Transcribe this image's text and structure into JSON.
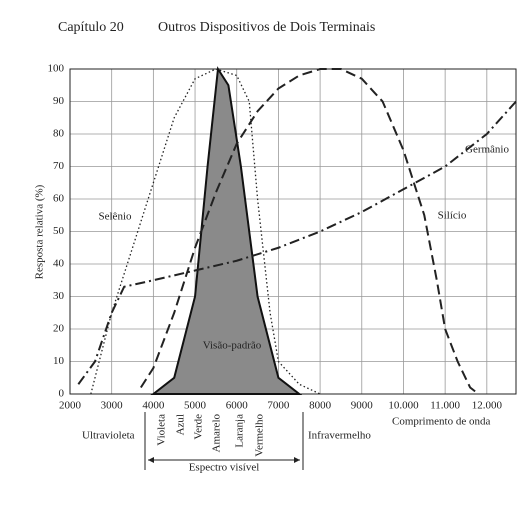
{
  "header": {
    "chapter": "Capítulo 20",
    "title": "Outros Dispositivos de Dois Terminais"
  },
  "chart_data": {
    "type": "line",
    "ylabel": "Resposta relativa (%)",
    "xlim": [
      2000,
      12700
    ],
    "ylim": [
      0,
      100
    ],
    "xticks": [
      2000,
      3000,
      4000,
      5000,
      6000,
      7000,
      8000,
      9000,
      {
        "value": 10000,
        "label": "10.000"
      },
      {
        "value": 11000,
        "label": "11.000"
      },
      {
        "value": 12000,
        "label": "12.000"
      }
    ],
    "yticks": [
      0,
      10,
      20,
      30,
      40,
      50,
      60,
      70,
      80,
      90,
      100
    ],
    "grid": true,
    "series": [
      {
        "name": "Selênio",
        "color": "#222",
        "style": "dotted",
        "x": [
          2500,
          2700,
          3000,
          3500,
          4000,
          4500,
          5000,
          5500,
          6000,
          6300,
          6500,
          6800,
          7000,
          7500,
          8000
        ],
        "values": [
          0,
          10,
          25,
          45,
          65,
          85,
          97,
          100,
          98,
          90,
          60,
          25,
          10,
          3,
          0
        ]
      },
      {
        "name": "Visão-padrão",
        "color": "#8a8a8a",
        "style": "filled",
        "x": [
          4000,
          4500,
          5000,
          5300,
          5550,
          5800,
          6100,
          6500,
          7000,
          7500
        ],
        "values": [
          0,
          5,
          30,
          70,
          100,
          95,
          70,
          30,
          5,
          0
        ]
      },
      {
        "name": "Silício",
        "color": "#222",
        "style": "dashed",
        "x": [
          3700,
          4000,
          4500,
          5000,
          5500,
          6000,
          6500,
          7000,
          7500,
          8000,
          8500,
          9000,
          9500,
          10000,
          10500,
          10800,
          11000,
          11300,
          11600,
          11800
        ],
        "values": [
          2,
          8,
          25,
          45,
          62,
          77,
          87,
          94,
          98,
          100,
          100,
          97,
          90,
          75,
          55,
          35,
          20,
          10,
          2,
          0
        ]
      },
      {
        "name": "Germânio",
        "color": "#222",
        "style": "dashdot",
        "x": [
          2200,
          2600,
          3000,
          3300,
          4000,
          5000,
          6000,
          7000,
          8000,
          9000,
          10000,
          11000,
          12000,
          12700
        ],
        "values": [
          3,
          10,
          25,
          33,
          35,
          38,
          41,
          45,
          50,
          56,
          63,
          70,
          80,
          90
        ]
      }
    ],
    "regions": [
      "Ultravioleta",
      "Infravermelho",
      "Comprimento de onda"
    ],
    "colors": [
      "Violeta",
      "Azul",
      "Verde",
      "Amarelo",
      "Laranja",
      "Vermelho"
    ],
    "spectrum_label": "Espectro visível"
  }
}
